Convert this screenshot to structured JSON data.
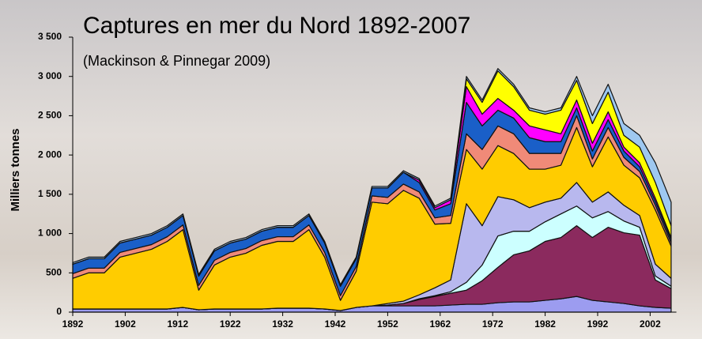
{
  "chart_data": {
    "type": "area",
    "title": "Captures en mer du Nord 1892-2007",
    "subtitle": "(Mackinson & Pinnegar 2009)",
    "y_label": "Milliers tonnes",
    "stacked": true,
    "x": [
      1892,
      1895,
      1898,
      1901,
      1904,
      1907,
      1910,
      1913,
      1916,
      1919,
      1922,
      1925,
      1928,
      1931,
      1934,
      1937,
      1940,
      1943,
      1946,
      1949,
      1952,
      1955,
      1958,
      1961,
      1964,
      1967,
      1970,
      1973,
      1976,
      1979,
      1982,
      1985,
      1988,
      1991,
      1994,
      1997,
      2000,
      2003,
      2006
    ],
    "xlim": [
      1892,
      2007
    ],
    "xticks": [
      1892,
      1902,
      1912,
      1922,
      1932,
      1942,
      1952,
      1962,
      1972,
      1982,
      1992,
      2002
    ],
    "ylim": [
      0,
      3500
    ],
    "yticks": [
      0,
      500,
      {
        "value": 1000,
        "label": "1 000"
      },
      {
        "value": 1500,
        "label": "1 500"
      },
      {
        "value": 2000,
        "label": "2 000"
      },
      {
        "value": 2500,
        "label": "2 500"
      },
      {
        "value": 3000,
        "label": "3 000"
      },
      {
        "value": 3500,
        "label": "3 500"
      }
    ],
    "series": [
      {
        "color": "#9c9cf0",
        "values": [
          40,
          40,
          40,
          40,
          40,
          40,
          40,
          60,
          30,
          40,
          40,
          40,
          40,
          50,
          50,
          50,
          40,
          20,
          60,
          80,
          80,
          80,
          80,
          80,
          90,
          100,
          100,
          120,
          130,
          130,
          150,
          170,
          200,
          150,
          130,
          110,
          80,
          60,
          50
        ]
      },
      {
        "color": "#8b2a5e",
        "values": [
          0,
          0,
          0,
          0,
          0,
          0,
          0,
          0,
          0,
          0,
          0,
          0,
          0,
          0,
          0,
          0,
          0,
          0,
          0,
          0,
          10,
          30,
          80,
          120,
          150,
          180,
          300,
          450,
          600,
          650,
          750,
          780,
          900,
          800,
          950,
          900,
          900,
          350,
          250
        ]
      },
      {
        "color": "#ccffff",
        "values": [
          0,
          0,
          0,
          0,
          0,
          0,
          0,
          0,
          0,
          0,
          0,
          0,
          0,
          0,
          0,
          0,
          0,
          0,
          0,
          0,
          0,
          0,
          10,
          10,
          20,
          100,
          200,
          400,
          300,
          250,
          250,
          300,
          250,
          250,
          200,
          150,
          100,
          50,
          30
        ]
      },
      {
        "color": "#b8b8ee",
        "values": [
          0,
          0,
          0,
          0,
          0,
          0,
          0,
          0,
          0,
          0,
          0,
          0,
          0,
          0,
          0,
          0,
          0,
          0,
          0,
          0,
          20,
          30,
          50,
          100,
          150,
          1000,
          500,
          500,
          400,
          300,
          250,
          200,
          300,
          200,
          250,
          200,
          150,
          150,
          100
        ]
      },
      {
        "color": "#ffcc00",
        "values": [
          390,
          460,
          460,
          660,
          710,
          760,
          860,
          990,
          250,
          560,
          660,
          710,
          810,
          850,
          850,
          1000,
          660,
          130,
          460,
          1320,
          1270,
          1410,
          1230,
          810,
          720,
          690,
          720,
          650,
          590,
          490,
          420,
          420,
          700,
          450,
          700,
          510,
          480,
          690,
          410
        ]
      },
      {
        "color": "#f08a78",
        "values": [
          60,
          60,
          60,
          60,
          60,
          60,
          60,
          60,
          60,
          60,
          60,
          60,
          60,
          60,
          60,
          60,
          60,
          60,
          60,
          80,
          80,
          80,
          80,
          80,
          100,
          200,
          250,
          250,
          250,
          200,
          200,
          150,
          150,
          100,
          120,
          100,
          80,
          60,
          40
        ]
      },
      {
        "color": "#1a5fc8",
        "values": [
          120,
          120,
          120,
          120,
          120,
          120,
          120,
          120,
          120,
          120,
          120,
          120,
          120,
          120,
          120,
          120,
          120,
          120,
          100,
          100,
          120,
          150,
          120,
          100,
          150,
          400,
          300,
          200,
          200,
          200,
          150,
          150,
          100,
          100,
          100,
          80,
          60,
          50,
          40
        ]
      },
      {
        "color": "#ff00ff",
        "values": [
          0,
          0,
          0,
          0,
          0,
          0,
          0,
          0,
          0,
          0,
          0,
          0,
          0,
          0,
          0,
          0,
          0,
          0,
          0,
          0,
          0,
          0,
          30,
          30,
          50,
          200,
          150,
          150,
          100,
          150,
          150,
          100,
          100,
          100,
          100,
          50,
          50,
          40,
          30
        ]
      },
      {
        "color": "#ffff00",
        "values": [
          0,
          0,
          0,
          0,
          0,
          0,
          0,
          0,
          0,
          0,
          0,
          0,
          0,
          0,
          0,
          0,
          0,
          0,
          0,
          0,
          0,
          0,
          0,
          0,
          0,
          100,
          150,
          350,
          300,
          200,
          200,
          300,
          250,
          250,
          250,
          150,
          200,
          200,
          150
        ]
      },
      {
        "color": "#9ec8f0",
        "values": [
          20,
          20,
          20,
          20,
          20,
          20,
          20,
          20,
          20,
          20,
          20,
          20,
          20,
          20,
          20,
          20,
          20,
          20,
          20,
          20,
          20,
          20,
          20,
          20,
          20,
          30,
          30,
          30,
          30,
          30,
          30,
          30,
          50,
          100,
          100,
          150,
          150,
          250,
          300
        ]
      }
    ]
  }
}
